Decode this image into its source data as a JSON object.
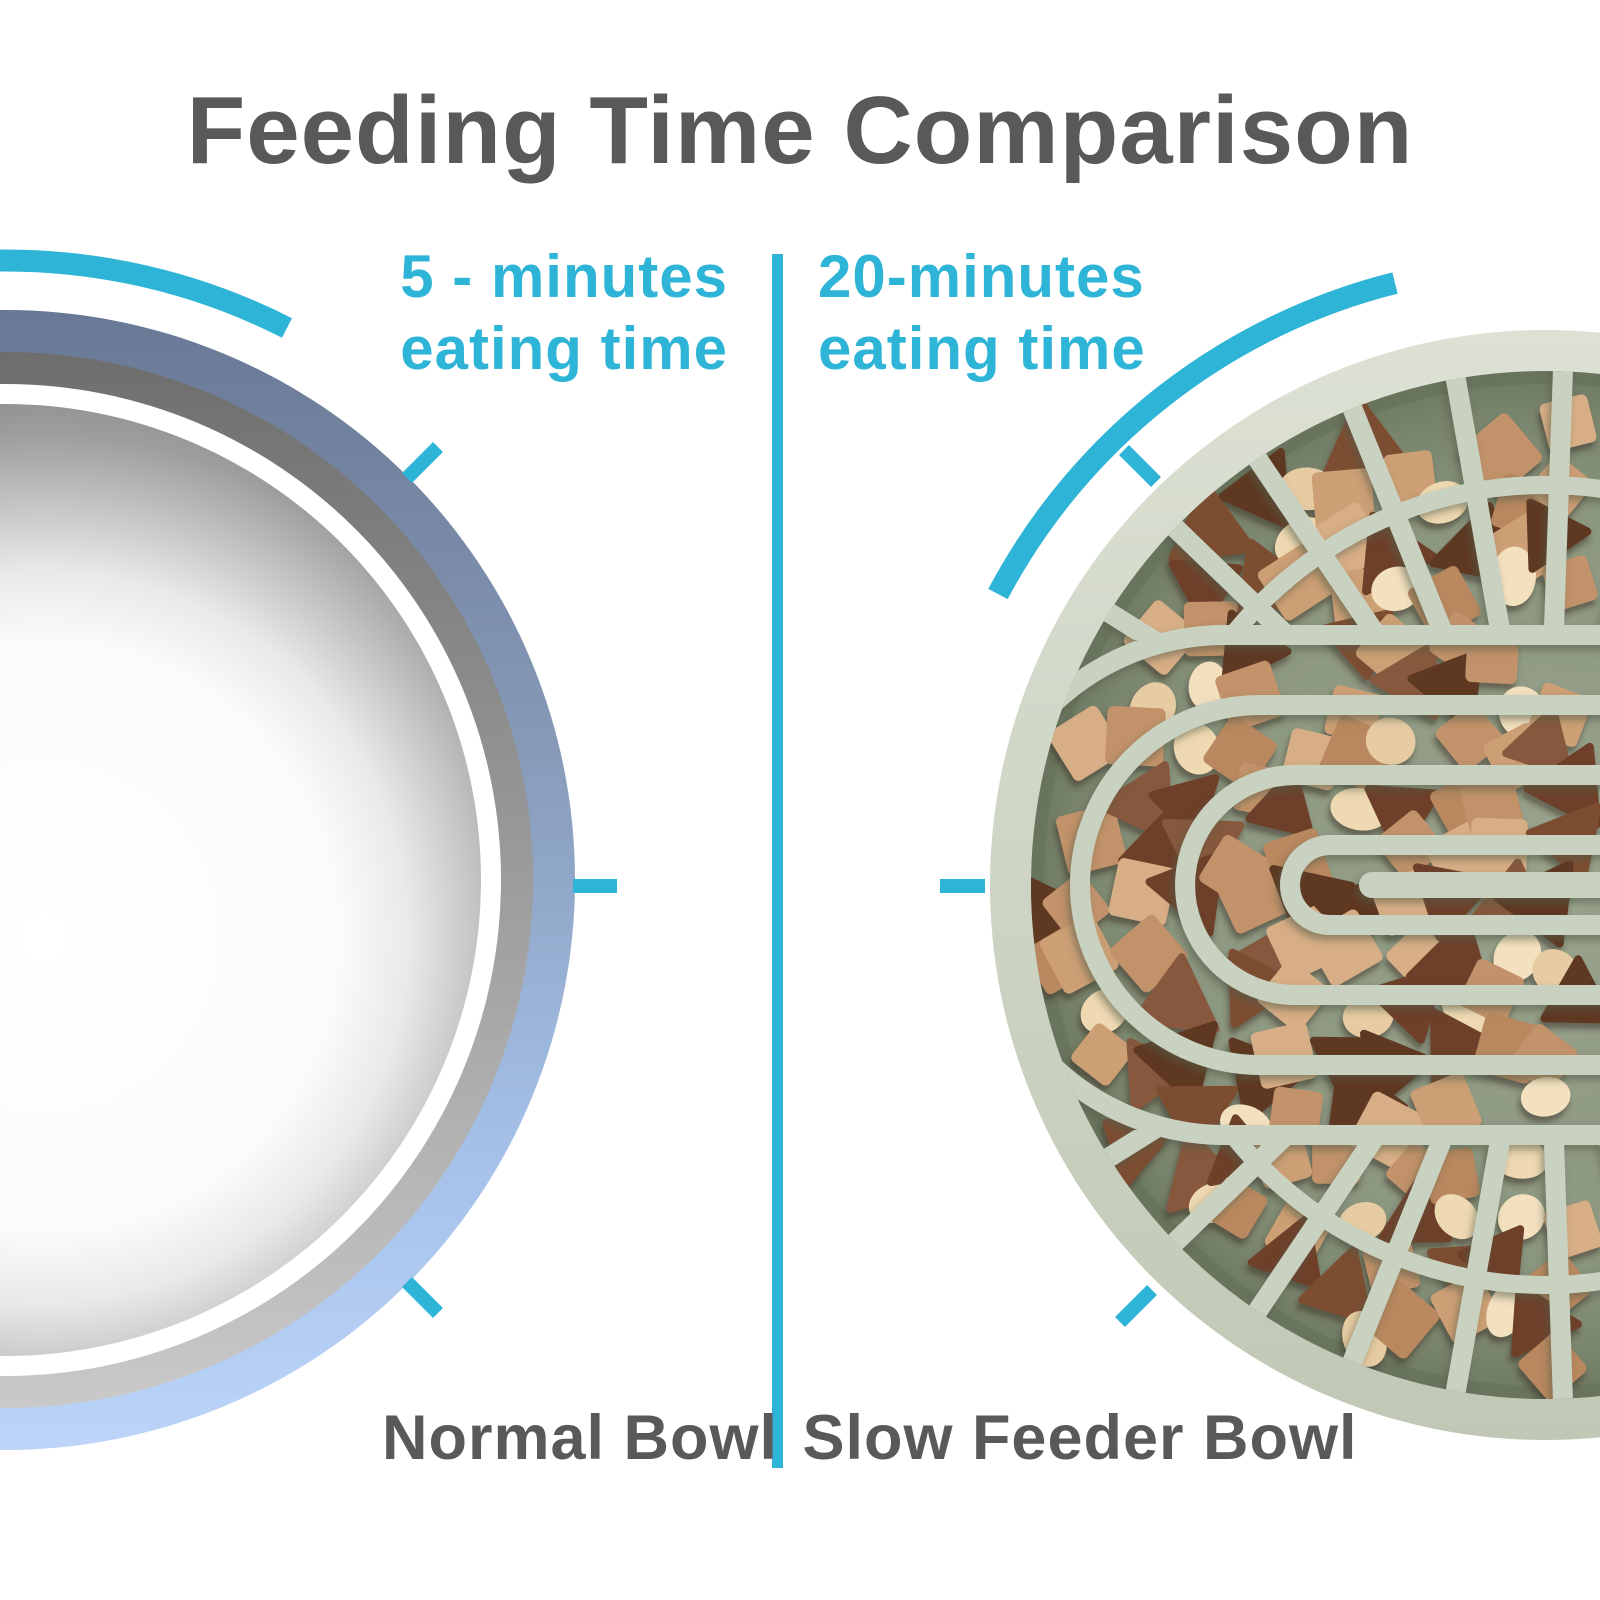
{
  "title": "Feeding Time Comparison",
  "comparison": {
    "left": {
      "time_line1": "5 - minutes",
      "time_line2": "eating time",
      "label": "Normal Bowl"
    },
    "right": {
      "time_line1": "20-minutes",
      "time_line2": "eating time",
      "label": "Slow Feeder Bowl"
    }
  },
  "colors": {
    "accent_cyan": "#2EB4D6",
    "title_gray": "#58595B",
    "bowl_rim_blue_top": "#6F7E9B",
    "bowl_rim_blue_bottom": "#B9D2F7",
    "bowl_steel_gray": "#8C8C8C",
    "feeder_rim": "#D3D9CA",
    "feeder_ridge": "#C9D2C1",
    "feeder_floor": "#77816B"
  },
  "kibble": {
    "cube_colors": [
      "#CD9F75",
      "#D8AE86",
      "#C2926A",
      "#B9885F"
    ],
    "triangle_colors": [
      "#6E4129",
      "#7D4D33",
      "#5F3823",
      "#87583C"
    ],
    "disc_colors": [
      "#EFD9B2",
      "#E6CBA3",
      "#F3E0BF"
    ]
  }
}
